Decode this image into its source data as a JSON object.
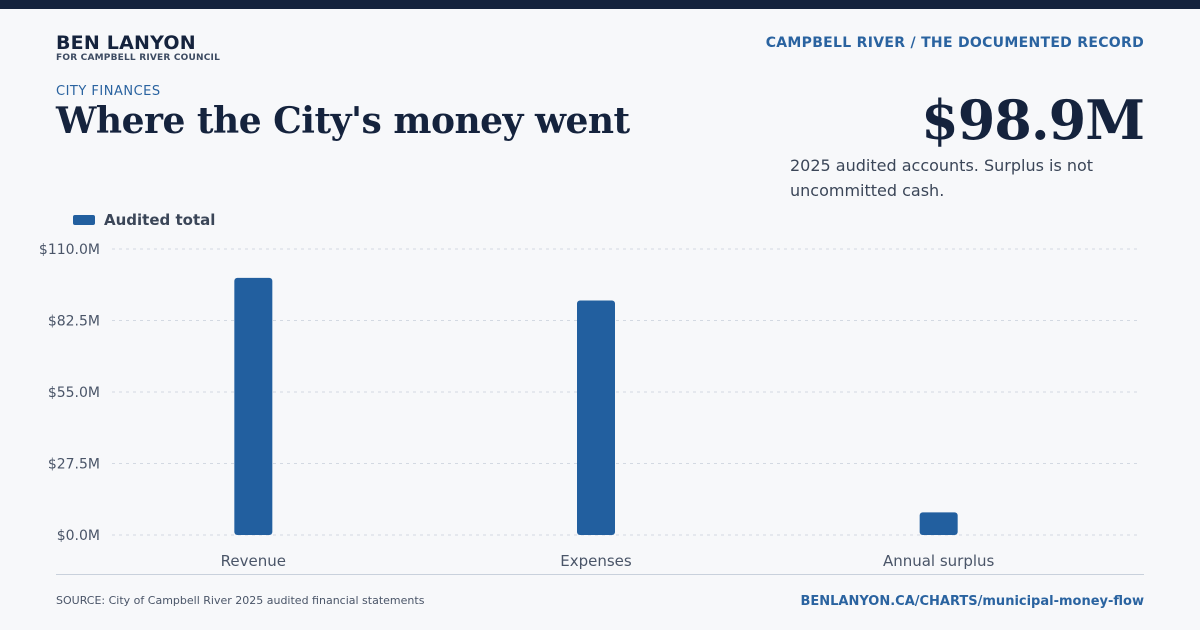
{
  "header": {
    "brand_name": "BEN LANYON",
    "brand_sub": "FOR CAMPBELL RIVER COUNCIL",
    "right_label": "CAMPBELL RIVER / THE DOCUMENTED RECORD"
  },
  "kicker": "CITY FINANCES",
  "title": "Where the City's money went",
  "highlight": {
    "value": "$98.9M",
    "note": "2025 audited accounts. Surplus is not uncommitted cash."
  },
  "footer": {
    "source": "SOURCE: City of Campbell River 2025 audited financial statements",
    "link": "BENLANYON.CA/CHARTS/municipal-money-flow"
  },
  "colors": {
    "bar": "#225f9f",
    "accent": "#2a63a0",
    "topbar": "#15233d"
  },
  "chart_data": {
    "type": "bar",
    "categories": [
      "Revenue",
      "Expenses",
      "Annual surplus"
    ],
    "series": [
      {
        "name": "Audited total",
        "values": [
          98.9,
          90.2,
          8.7
        ]
      }
    ],
    "ylim": [
      0,
      110
    ],
    "yticks": [
      0,
      27.5,
      55,
      82.5,
      110
    ],
    "ytick_labels": [
      "$0.0M",
      "$27.5M",
      "$55.0M",
      "$82.5M",
      "$110.0M"
    ],
    "grid": true,
    "legend": "top-left"
  }
}
